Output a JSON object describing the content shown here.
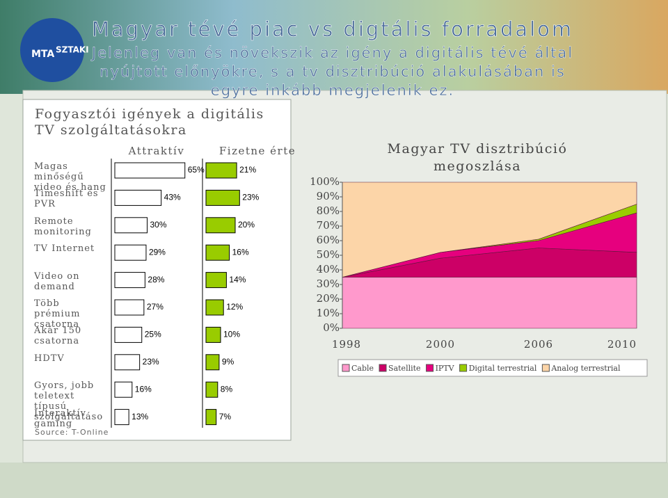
{
  "logo": {
    "line1": "MTA",
    "line2": "SZTAKI"
  },
  "title": "Magyar tévé piac vs digtális forradalom",
  "subtitle_lines": [
    "Jelenleg van és növekszik az igény a digitális tévé által",
    "nyújtott előnyökre, s a tv disztribúció alakulásában is",
    "egyre inkább megjelenik ez."
  ],
  "chart_data": [
    {
      "type": "bar",
      "orientation": "horizontal",
      "title": [
        "Fogyasztói igények a digitális",
        "TV szolgáltatásokra"
      ],
      "categories": [
        "Magas minőségű video és hang",
        "Timeshift és PVR",
        "Remote monitoring",
        "TV Internet",
        "Video on demand",
        "Több prémium csatorna",
        "Akár 150 csatorna",
        "HDTV",
        "Gyors, jobb teletext típusú szolgáltatáso",
        "Interaktív gaming"
      ],
      "series": [
        {
          "name": "Attraktív",
          "color": "#ffffff",
          "values": [
            65,
            43,
            30,
            29,
            28,
            27,
            25,
            23,
            16,
            13
          ],
          "value_labels": [
            "65%",
            "43%",
            "30%",
            "29%",
            "28%",
            "27%",
            "25%",
            "23%",
            "16%",
            "13%"
          ]
        },
        {
          "name": "Fizetne érte",
          "color": "#99cc00",
          "values": [
            21,
            23,
            20,
            16,
            14,
            12,
            10,
            9,
            8,
            7
          ],
          "value_labels": [
            "21%",
            "23%",
            "20%",
            "16%",
            "14%",
            "12%",
            "10%",
            "9%",
            "8%",
            "7%"
          ]
        }
      ],
      "source": "Source: T-Online"
    },
    {
      "type": "area",
      "stacked": true,
      "title": [
        "Magyar TV disztribúció",
        "megoszlása"
      ],
      "categories": [
        "1998",
        "2000",
        "2006",
        "2010"
      ],
      "series": [
        {
          "name": "Cable",
          "color": "#ff99cc",
          "values": [
            35,
            35,
            35,
            35
          ]
        },
        {
          "name": "Satellite",
          "color": "#cc0066",
          "values": [
            0,
            13,
            20,
            17
          ]
        },
        {
          "name": "IPTV",
          "color": "#e6007e",
          "values": [
            0,
            4,
            5,
            27
          ]
        },
        {
          "name": "Digital terrestrial",
          "color": "#99cc00",
          "values": [
            0,
            0,
            1,
            6
          ]
        },
        {
          "name": "Analog terrestrial",
          "color": "#fcd5a8",
          "values": [
            65,
            48,
            39,
            15
          ]
        }
      ],
      "ylim": [
        0,
        100
      ],
      "yticks": [
        {
          "value": 0,
          "label": "0%"
        },
        {
          "value": 10,
          "label": "10%"
        },
        {
          "value": 20,
          "label": "20%"
        },
        {
          "value": 30,
          "label": "30%"
        },
        {
          "value": 40,
          "label": "40%"
        },
        {
          "value": 50,
          "label": "50%"
        },
        {
          "value": 60,
          "label": "60%"
        },
        {
          "value": 70,
          "label": "70%"
        },
        {
          "value": 80,
          "label": "80%"
        },
        {
          "value": 90,
          "label": "90%"
        },
        {
          "value": 100,
          "label": "100%"
        }
      ],
      "legend": "bottom"
    }
  ]
}
